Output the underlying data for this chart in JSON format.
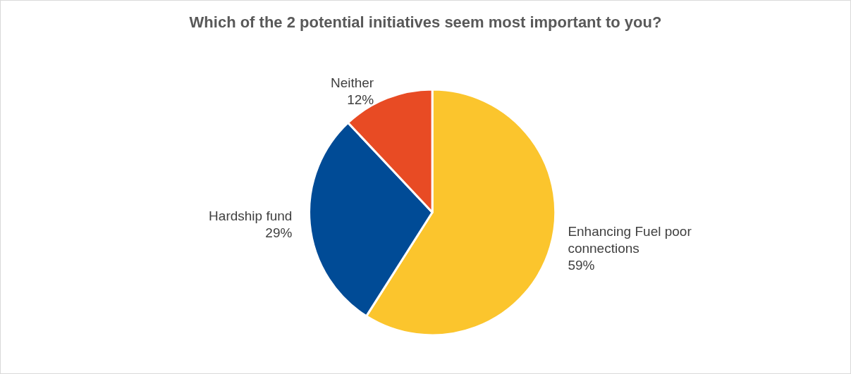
{
  "chart_data": {
    "type": "pie",
    "title": "Which of the 2 potential initiatives seem most important to you?",
    "categories": [
      "Enhancing Fuel poor connections",
      "Hardship fund",
      "Neither"
    ],
    "values": [
      59,
      29,
      12
    ],
    "value_labels": [
      "59%",
      "29%",
      "12%"
    ],
    "colors": [
      "#fbc52d",
      "#004b96",
      "#e84b24"
    ],
    "legend": false
  }
}
